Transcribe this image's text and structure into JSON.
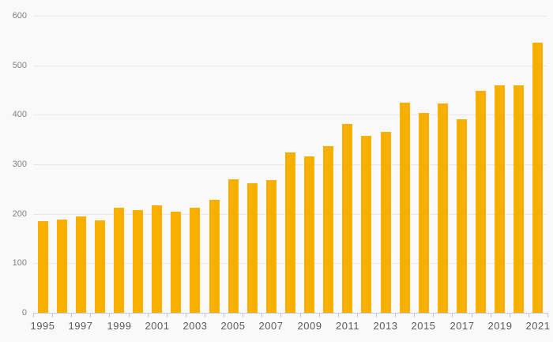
{
  "chart_data": {
    "type": "bar",
    "title": "",
    "xlabel": "",
    "ylabel": "",
    "categories": [
      "1995",
      "1996",
      "1997",
      "1998",
      "1999",
      "2000",
      "2001",
      "2002",
      "2003",
      "2004",
      "2005",
      "2006",
      "2007",
      "2008",
      "2009",
      "2010",
      "2011",
      "2012",
      "2013",
      "2014",
      "2015",
      "2016",
      "2017",
      "2018",
      "2019",
      "2020",
      "2021"
    ],
    "values": [
      185,
      189,
      194,
      186,
      213,
      208,
      217,
      204,
      213,
      228,
      269,
      261,
      268,
      324,
      316,
      337,
      381,
      358,
      366,
      425,
      404,
      423,
      391,
      449,
      460,
      460,
      545
    ],
    "ylim": [
      0,
      600
    ],
    "yticks": [
      0,
      100,
      200,
      300,
      400,
      500,
      600
    ],
    "xtick_labels": [
      "1995",
      "1997",
      "1999",
      "2001",
      "2003",
      "2005",
      "2007",
      "2009",
      "2011",
      "2013",
      "2015",
      "2017",
      "2019",
      "2021"
    ],
    "grid": true,
    "legend": false
  },
  "colors": {
    "bar": "#F9AF00",
    "background": "#F9F9F9",
    "gridline": "#E8E8E8",
    "axis": "#C3CCDD",
    "y_label": "#7F7F7F",
    "x_label": "#5A5A5A"
  }
}
